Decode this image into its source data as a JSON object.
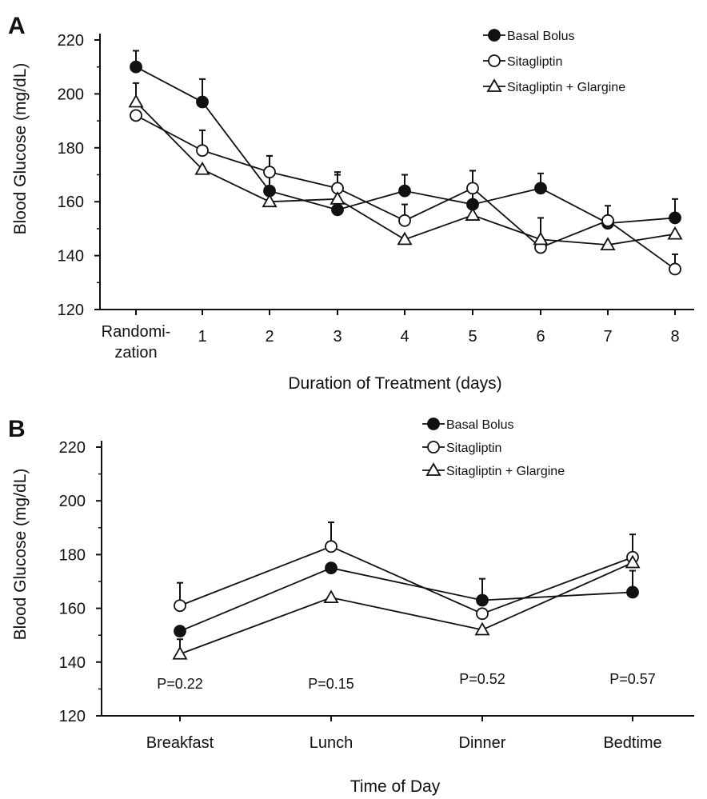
{
  "chart_data": [
    {
      "type": "line",
      "panel_label": "A",
      "xlabel": "Duration of Treatment  (days)",
      "ylabel": "Blood Glucose (mg/dL)",
      "ylim": [
        120,
        220
      ],
      "yticks": [
        120,
        140,
        160,
        180,
        200,
        220
      ],
      "categories": [
        "Randomi-\nzation",
        "1",
        "2",
        "3",
        "4",
        "5",
        "6",
        "7",
        "8"
      ],
      "legend_position": "top-right",
      "grid": false,
      "series": [
        {
          "name": "Basal Bolus",
          "marker": "filled-circle",
          "values": [
            210,
            197,
            164,
            157,
            164,
            159,
            165,
            152,
            154
          ],
          "error_upper": [
            216,
            205.5,
            177,
            170,
            170,
            171.5,
            170.5,
            158.5,
            161
          ]
        },
        {
          "name": "Sitagliptin",
          "marker": "open-circle",
          "values": [
            192,
            179,
            171,
            165,
            153,
            165,
            143,
            153,
            135
          ],
          "error_upper": [
            null,
            186.5,
            177,
            171,
            159,
            171.5,
            null,
            null,
            140.5
          ]
        },
        {
          "name": "Sitagliptin + Glargine",
          "marker": "open-triangle",
          "values": [
            197,
            172,
            160,
            161,
            146,
            155,
            146,
            144,
            148
          ],
          "error_upper": [
            204,
            null,
            null,
            null,
            null,
            null,
            154,
            null,
            null
          ]
        }
      ]
    },
    {
      "type": "line",
      "panel_label": "B",
      "xlabel": "Time of Day",
      "ylabel": "Blood Glucose (mg/dL)",
      "ylim": [
        120,
        220
      ],
      "yticks": [
        120,
        140,
        160,
        180,
        200,
        220
      ],
      "categories": [
        "Breakfast",
        "Lunch",
        "Dinner",
        "Bedtime"
      ],
      "legend_position": "top-right",
      "grid": false,
      "series": [
        {
          "name": "Basal Bolus",
          "marker": "filled-circle",
          "values": [
            151.5,
            175,
            163,
            166
          ],
          "error_upper": [
            null,
            null,
            171,
            174
          ]
        },
        {
          "name": "Sitagliptin",
          "marker": "open-circle",
          "values": [
            161,
            183,
            158,
            179
          ],
          "error_upper": [
            169.5,
            192,
            null,
            187.5
          ]
        },
        {
          "name": "Sitagliptin + Glargine",
          "marker": "open-triangle",
          "values": [
            143,
            164,
            152,
            177
          ],
          "error_upper": [
            148.5,
            null,
            null,
            null
          ]
        }
      ],
      "annotations": [
        "P=0.22",
        "P=0.15",
        "P=0.52",
        "P=0.57"
      ]
    }
  ]
}
